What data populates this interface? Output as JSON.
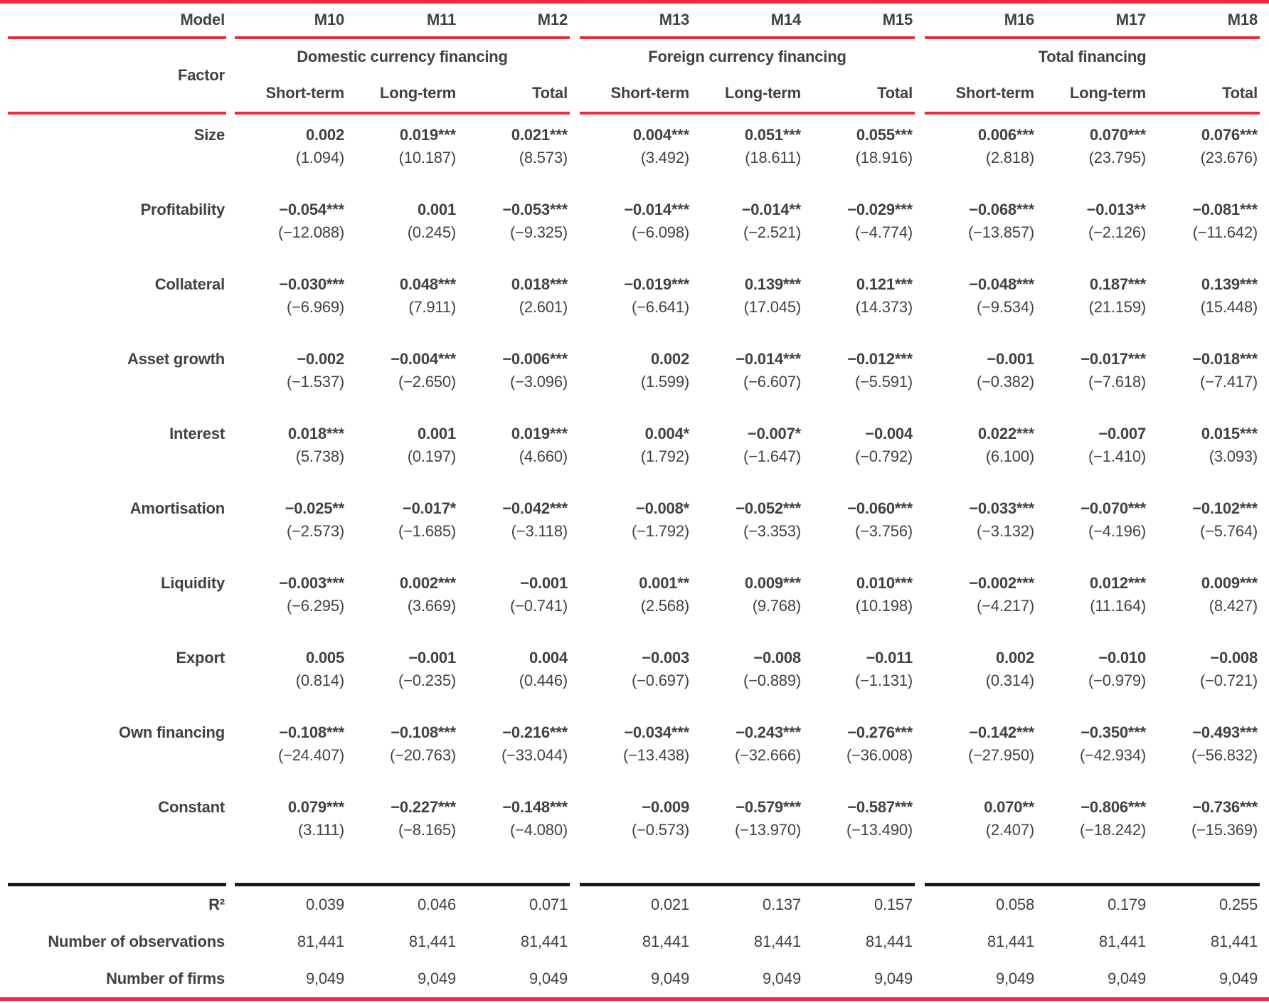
{
  "table": {
    "model_label": "Model",
    "factor_label": "Factor",
    "models": [
      "M10",
      "M11",
      "M12",
      "M13",
      "M14",
      "M15",
      "M16",
      "M17",
      "M18"
    ],
    "groups": [
      {
        "label": "Domestic currency financing",
        "subcols": [
          "Short-term",
          "Long-term",
          "Total"
        ]
      },
      {
        "label": "Foreign currency financing",
        "subcols": [
          "Short-term",
          "Long-term",
          "Total"
        ]
      },
      {
        "label": "Total financing",
        "subcols": [
          "Short-term",
          "Long-term",
          "Total"
        ]
      }
    ],
    "rows": [
      {
        "factor": "Size",
        "coefs": [
          "0.002",
          "0.019***",
          "0.021***",
          "0.004***",
          "0.051***",
          "0.055***",
          "0.006***",
          "0.070***",
          "0.076***"
        ],
        "tstats": [
          "(1.094)",
          "(10.187)",
          "(8.573)",
          "(3.492)",
          "(18.611)",
          "(18.916)",
          "(2.818)",
          "(23.795)",
          "(23.676)"
        ]
      },
      {
        "factor": "Profitability",
        "coefs": [
          "−0.054***",
          "0.001",
          "−0.053***",
          "−0.014***",
          "−0.014**",
          "−0.029***",
          "−0.068***",
          "−0.013**",
          "−0.081***"
        ],
        "tstats": [
          "(−12.088)",
          "(0.245)",
          "(−9.325)",
          "(−6.098)",
          "(−2.521)",
          "(−4.774)",
          "(−13.857)",
          "(−2.126)",
          "(−11.642)"
        ]
      },
      {
        "factor": "Collateral",
        "coefs": [
          "−0.030***",
          "0.048***",
          "0.018***",
          "−0.019***",
          "0.139***",
          "0.121***",
          "−0.048***",
          "0.187***",
          "0.139***"
        ],
        "tstats": [
          "(−6.969)",
          "(7.911)",
          "(2.601)",
          "(−6.641)",
          "(17.045)",
          "(14.373)",
          "(−9.534)",
          "(21.159)",
          "(15.448)"
        ]
      },
      {
        "factor": "Asset growth",
        "coefs": [
          "−0.002",
          "−0.004***",
          "−0.006***",
          "0.002",
          "−0.014***",
          "−0.012***",
          "−0.001",
          "−0.017***",
          "−0.018***"
        ],
        "tstats": [
          "(−1.537)",
          "(−2.650)",
          "(−3.096)",
          "(1.599)",
          "(−6.607)",
          "(−5.591)",
          "(−0.382)",
          "(−7.618)",
          "(−7.417)"
        ]
      },
      {
        "factor": "Interest",
        "coefs": [
          "0.018***",
          "0.001",
          "0.019***",
          "0.004*",
          "−0.007*",
          "−0.004",
          "0.022***",
          "−0.007",
          "0.015***"
        ],
        "tstats": [
          "(5.738)",
          "(0.197)",
          "(4.660)",
          "(1.792)",
          "(−1.647)",
          "(−0.792)",
          "(6.100)",
          "(−1.410)",
          "(3.093)"
        ]
      },
      {
        "factor": "Amortisation",
        "coefs": [
          "−0.025**",
          "−0.017*",
          "−0.042***",
          "−0.008*",
          "−0.052***",
          "−0.060***",
          "−0.033***",
          "−0.070***",
          "−0.102***"
        ],
        "tstats": [
          "(−2.573)",
          "(−1.685)",
          "(−3.118)",
          "(−1.792)",
          "(−3.353)",
          "(−3.756)",
          "(−3.132)",
          "(−4.196)",
          "(−5.764)"
        ]
      },
      {
        "factor": "Liquidity",
        "coefs": [
          "−0.003***",
          "0.002***",
          "−0.001",
          "0.001**",
          "0.009***",
          "0.010***",
          "−0.002***",
          "0.012***",
          "0.009***"
        ],
        "tstats": [
          "(−6.295)",
          "(3.669)",
          "(−0.741)",
          "(2.568)",
          "(9.768)",
          "(10.198)",
          "(−4.217)",
          "(11.164)",
          "(8.427)"
        ]
      },
      {
        "factor": "Export",
        "coefs": [
          "0.005",
          "−0.001",
          "0.004",
          "−0.003",
          "−0.008",
          "−0.011",
          "0.002",
          "−0.010",
          "−0.008"
        ],
        "tstats": [
          "(0.814)",
          "(−0.235)",
          "(0.446)",
          "(−0.697)",
          "(−0.889)",
          "(−1.131)",
          "(0.314)",
          "(−0.979)",
          "(−0.721)"
        ]
      },
      {
        "factor": "Own financing",
        "coefs": [
          "−0.108***",
          "−0.108***",
          "−0.216***",
          "−0.034***",
          "−0.243***",
          "−0.276***",
          "−0.142***",
          "−0.350***",
          "−0.493***"
        ],
        "tstats": [
          "(−24.407)",
          "(−20.763)",
          "(−33.044)",
          "(−13.438)",
          "(−32.666)",
          "(−36.008)",
          "(−27.950)",
          "(−42.934)",
          "(−56.832)"
        ]
      },
      {
        "factor": "Constant",
        "coefs": [
          "0.079***",
          "−0.227***",
          "−0.148***",
          "−0.009",
          "−0.579***",
          "−0.587***",
          "0.070**",
          "−0.806***",
          "−0.736***"
        ],
        "tstats": [
          "(3.111)",
          "(−8.165)",
          "(−4.080)",
          "(−0.573)",
          "(−13.970)",
          "(−13.490)",
          "(2.407)",
          "(−18.242)",
          "(−15.369)"
        ]
      }
    ],
    "stats": [
      {
        "label": "R²",
        "values": [
          "0.039",
          "0.046",
          "0.071",
          "0.021",
          "0.137",
          "0.157",
          "0.058",
          "0.179",
          "0.255"
        ]
      },
      {
        "label": "Number of observations",
        "values": [
          "81,441",
          "81,441",
          "81,441",
          "81,441",
          "81,441",
          "81,441",
          "81,441",
          "81,441",
          "81,441"
        ]
      },
      {
        "label": "Number of firms",
        "values": [
          "9,049",
          "9,049",
          "9,049",
          "9,049",
          "9,049",
          "9,049",
          "9,049",
          "9,049",
          "9,049"
        ]
      }
    ],
    "colors": {
      "rule_red": "#EE2B3C",
      "rule_black": "#1C1C1C",
      "text": "#3E4347"
    }
  }
}
